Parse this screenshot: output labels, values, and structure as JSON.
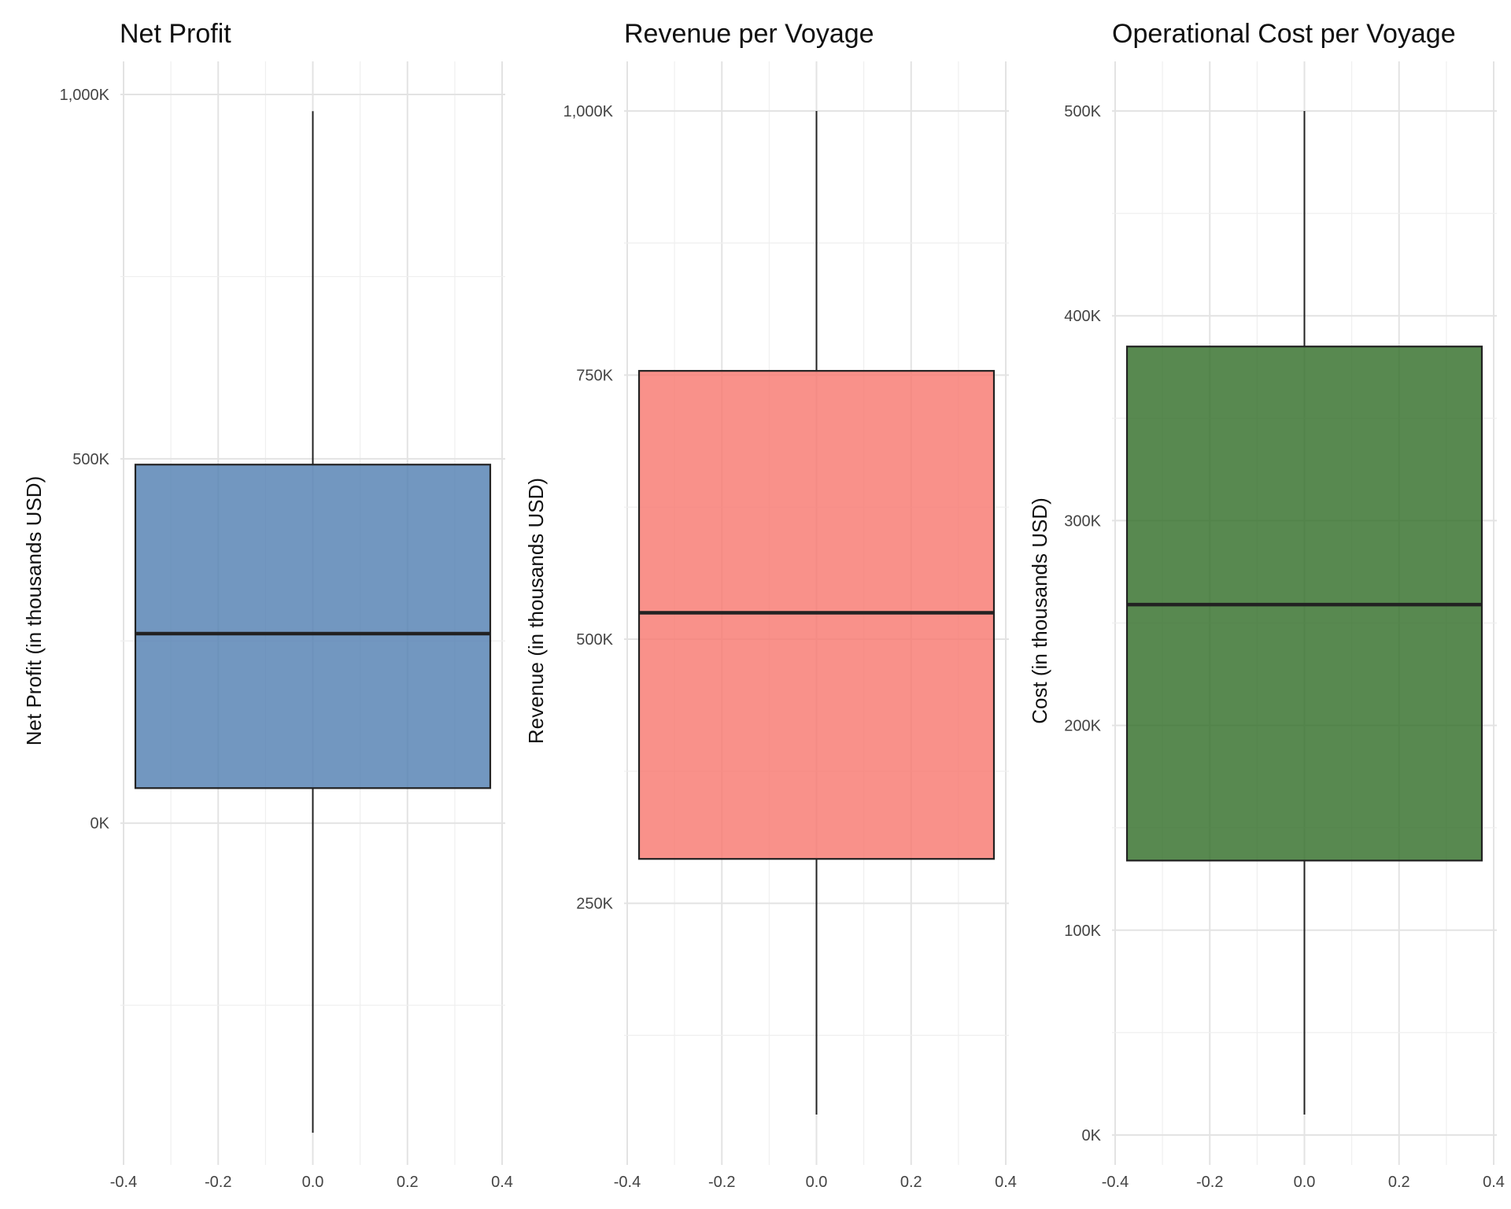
{
  "chart_data": [
    {
      "type": "box",
      "title": "Net Profit",
      "ylabel": "Net Profit (in thousands USD)",
      "xlim": [
        -0.4,
        0.4
      ],
      "ylim": [
        -400,
        1000
      ],
      "x_ticks": [
        "-0.4",
        "-0.2",
        "0.0",
        "0.2",
        "0.4"
      ],
      "y_ticks": [
        {
          "value": 0,
          "label": "0K"
        },
        {
          "value": 500,
          "label": "500K"
        },
        {
          "value": 1000,
          "label": "1,000K"
        }
      ],
      "y_minor": [
        -250,
        250,
        750
      ],
      "box": {
        "min": -425,
        "q1": 48,
        "median": 260,
        "q3": 492,
        "max": 977,
        "x_center": 0,
        "half_width": 0.375
      },
      "fill": "#4f7db0",
      "grid": true
    },
    {
      "type": "box",
      "title": "Revenue per Voyage",
      "ylabel": "Revenue (in thousands USD)",
      "xlim": [
        -0.4,
        0.4
      ],
      "ylim": [
        50,
        1000
      ],
      "x_ticks": [
        "-0.4",
        "-0.2",
        "0.0",
        "0.2",
        "0.4"
      ],
      "y_ticks": [
        {
          "value": 250,
          "label": "250K"
        },
        {
          "value": 500,
          "label": "500K"
        },
        {
          "value": 750,
          "label": "750K"
        },
        {
          "value": 1000,
          "label": "1,000K"
        }
      ],
      "y_minor": [
        125,
        375,
        625,
        875
      ],
      "box": {
        "min": 50,
        "q1": 292,
        "median": 525,
        "q3": 754,
        "max": 1000,
        "x_center": 0,
        "half_width": 0.375
      },
      "fill": "#f8766d",
      "grid": true
    },
    {
      "type": "box",
      "title": "Operational Cost per Voyage",
      "ylabel": "Cost (in thousands USD)",
      "xlim": [
        -0.4,
        0.4
      ],
      "ylim": [
        0,
        500
      ],
      "x_ticks": [
        "-0.4",
        "-0.2",
        "0.0",
        "0.2",
        "0.4"
      ],
      "y_ticks": [
        {
          "value": 0,
          "label": "0K"
        },
        {
          "value": 100,
          "label": "100K"
        },
        {
          "value": 200,
          "label": "200K"
        },
        {
          "value": 300,
          "label": "300K"
        },
        {
          "value": 400,
          "label": "400K"
        },
        {
          "value": 500,
          "label": "500K"
        }
      ],
      "y_minor": [
        50,
        150,
        250,
        350,
        450
      ],
      "box": {
        "min": 10,
        "q1": 134,
        "median": 259,
        "q3": 385,
        "max": 500,
        "x_center": 0,
        "half_width": 0.375
      },
      "fill": "#2e6b24",
      "grid": true
    }
  ]
}
